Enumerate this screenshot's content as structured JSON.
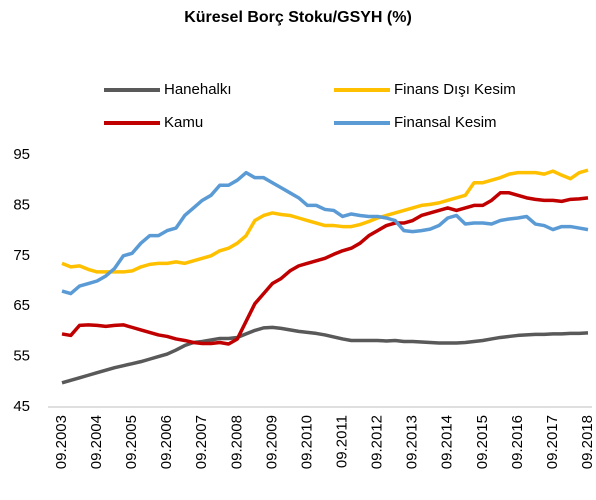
{
  "chart_data": {
    "type": "line",
    "title": "Küresel Borç Stoku/GSYH (%)",
    "categories": [
      "09.2003",
      null,
      null,
      null,
      "09.2004",
      null,
      null,
      null,
      "09.2005",
      null,
      null,
      null,
      "09.2006",
      null,
      null,
      null,
      "09.2007",
      null,
      null,
      null,
      "09.2008",
      null,
      null,
      null,
      "09.2009",
      null,
      null,
      null,
      "09.2010",
      null,
      null,
      null,
      "09.2011",
      null,
      null,
      null,
      "09.2012",
      null,
      null,
      null,
      "09.2013",
      null,
      null,
      null,
      "09.2014",
      null,
      null,
      null,
      "09.2015",
      null,
      null,
      null,
      "09.2016",
      null,
      null,
      null,
      "09.2017",
      null,
      null,
      null,
      "09.2018"
    ],
    "series": [
      {
        "name": "Hanehalkı",
        "color": "#595959",
        "values": [
          49.8,
          50.3,
          50.8,
          51.3,
          51.8,
          52.3,
          52.8,
          53.2,
          53.6,
          54.0,
          54.5,
          55.0,
          55.5,
          56.3,
          57.2,
          57.8,
          58.0,
          58.3,
          58.6,
          58.6,
          58.8,
          59.5,
          60.2,
          60.7,
          60.8,
          60.6,
          60.3,
          60.0,
          59.8,
          59.6,
          59.3,
          58.9,
          58.5,
          58.2,
          58.2,
          58.2,
          58.2,
          58.1,
          58.2,
          58.0,
          58.0,
          57.9,
          57.8,
          57.7,
          57.7,
          57.7,
          57.8,
          58.0,
          58.2,
          58.5,
          58.8,
          59.0,
          59.2,
          59.3,
          59.4,
          59.4,
          59.5,
          59.5,
          59.6,
          59.6,
          59.7
        ]
      },
      {
        "name": "Finans Dışı Kesim",
        "color": "#FFC000",
        "values": [
          73.5,
          72.8,
          73,
          72.3,
          71.8,
          71.8,
          71.8,
          71.8,
          72,
          72.8,
          73.3,
          73.5,
          73.5,
          73.8,
          73.5,
          74,
          74.5,
          75,
          76,
          76.5,
          77.5,
          79,
          82,
          83,
          83.5,
          83.2,
          83,
          82.5,
          82,
          81.5,
          81,
          81,
          80.8,
          80.8,
          81.2,
          81.8,
          82.5,
          83,
          83.5,
          84,
          84.5,
          85,
          85.2,
          85.5,
          86,
          86.5,
          87,
          89.5,
          89.5,
          90,
          90.5,
          91.2,
          91.5,
          91.5,
          91.5,
          91.2,
          91.8,
          91,
          90.3,
          91.5,
          92
        ]
      },
      {
        "name": "Kamu",
        "color": "#C00000",
        "values": [
          59.5,
          59.2,
          61.2,
          61.3,
          61.2,
          61.0,
          61.2,
          61.3,
          60.8,
          60.3,
          59.8,
          59.3,
          59.0,
          58.5,
          58.2,
          57.8,
          57.6,
          57.6,
          57.8,
          57.5,
          58.5,
          62,
          65.5,
          67.5,
          69.5,
          70.5,
          72,
          73,
          73.5,
          74,
          74.5,
          75.3,
          76,
          76.5,
          77.5,
          79,
          80,
          81,
          81.5,
          81.5,
          82,
          83,
          83.5,
          84,
          84.5,
          84,
          84.5,
          85,
          85,
          86,
          87.5,
          87.5,
          87,
          86.5,
          86.2,
          86,
          86,
          85.8,
          86.2,
          86.3,
          86.5
        ]
      },
      {
        "name": "Finansal Kesim",
        "color": "#5B9BD5",
        "values": [
          68,
          67.5,
          69,
          69.5,
          70,
          71,
          72.5,
          75,
          75.5,
          77.5,
          79,
          79,
          80,
          80.5,
          83,
          84.5,
          86,
          87,
          89,
          89,
          90,
          91.5,
          90.5,
          90.5,
          89.5,
          88.5,
          87.5,
          86.5,
          85,
          85,
          84.2,
          84,
          82.8,
          83.3,
          83,
          82.8,
          82.8,
          82.5,
          82,
          80,
          79.8,
          80,
          80.3,
          81,
          82.5,
          83,
          81.3,
          81.5,
          81.5,
          81.3,
          82,
          82.3,
          82.5,
          82.8,
          81.3,
          81,
          80.2,
          80.8,
          80.8,
          80.5,
          80.2
        ]
      }
    ],
    "ylim": [
      45,
      95
    ],
    "yticks": [
      45,
      55,
      65,
      75,
      85,
      95
    ],
    "grid": false
  }
}
